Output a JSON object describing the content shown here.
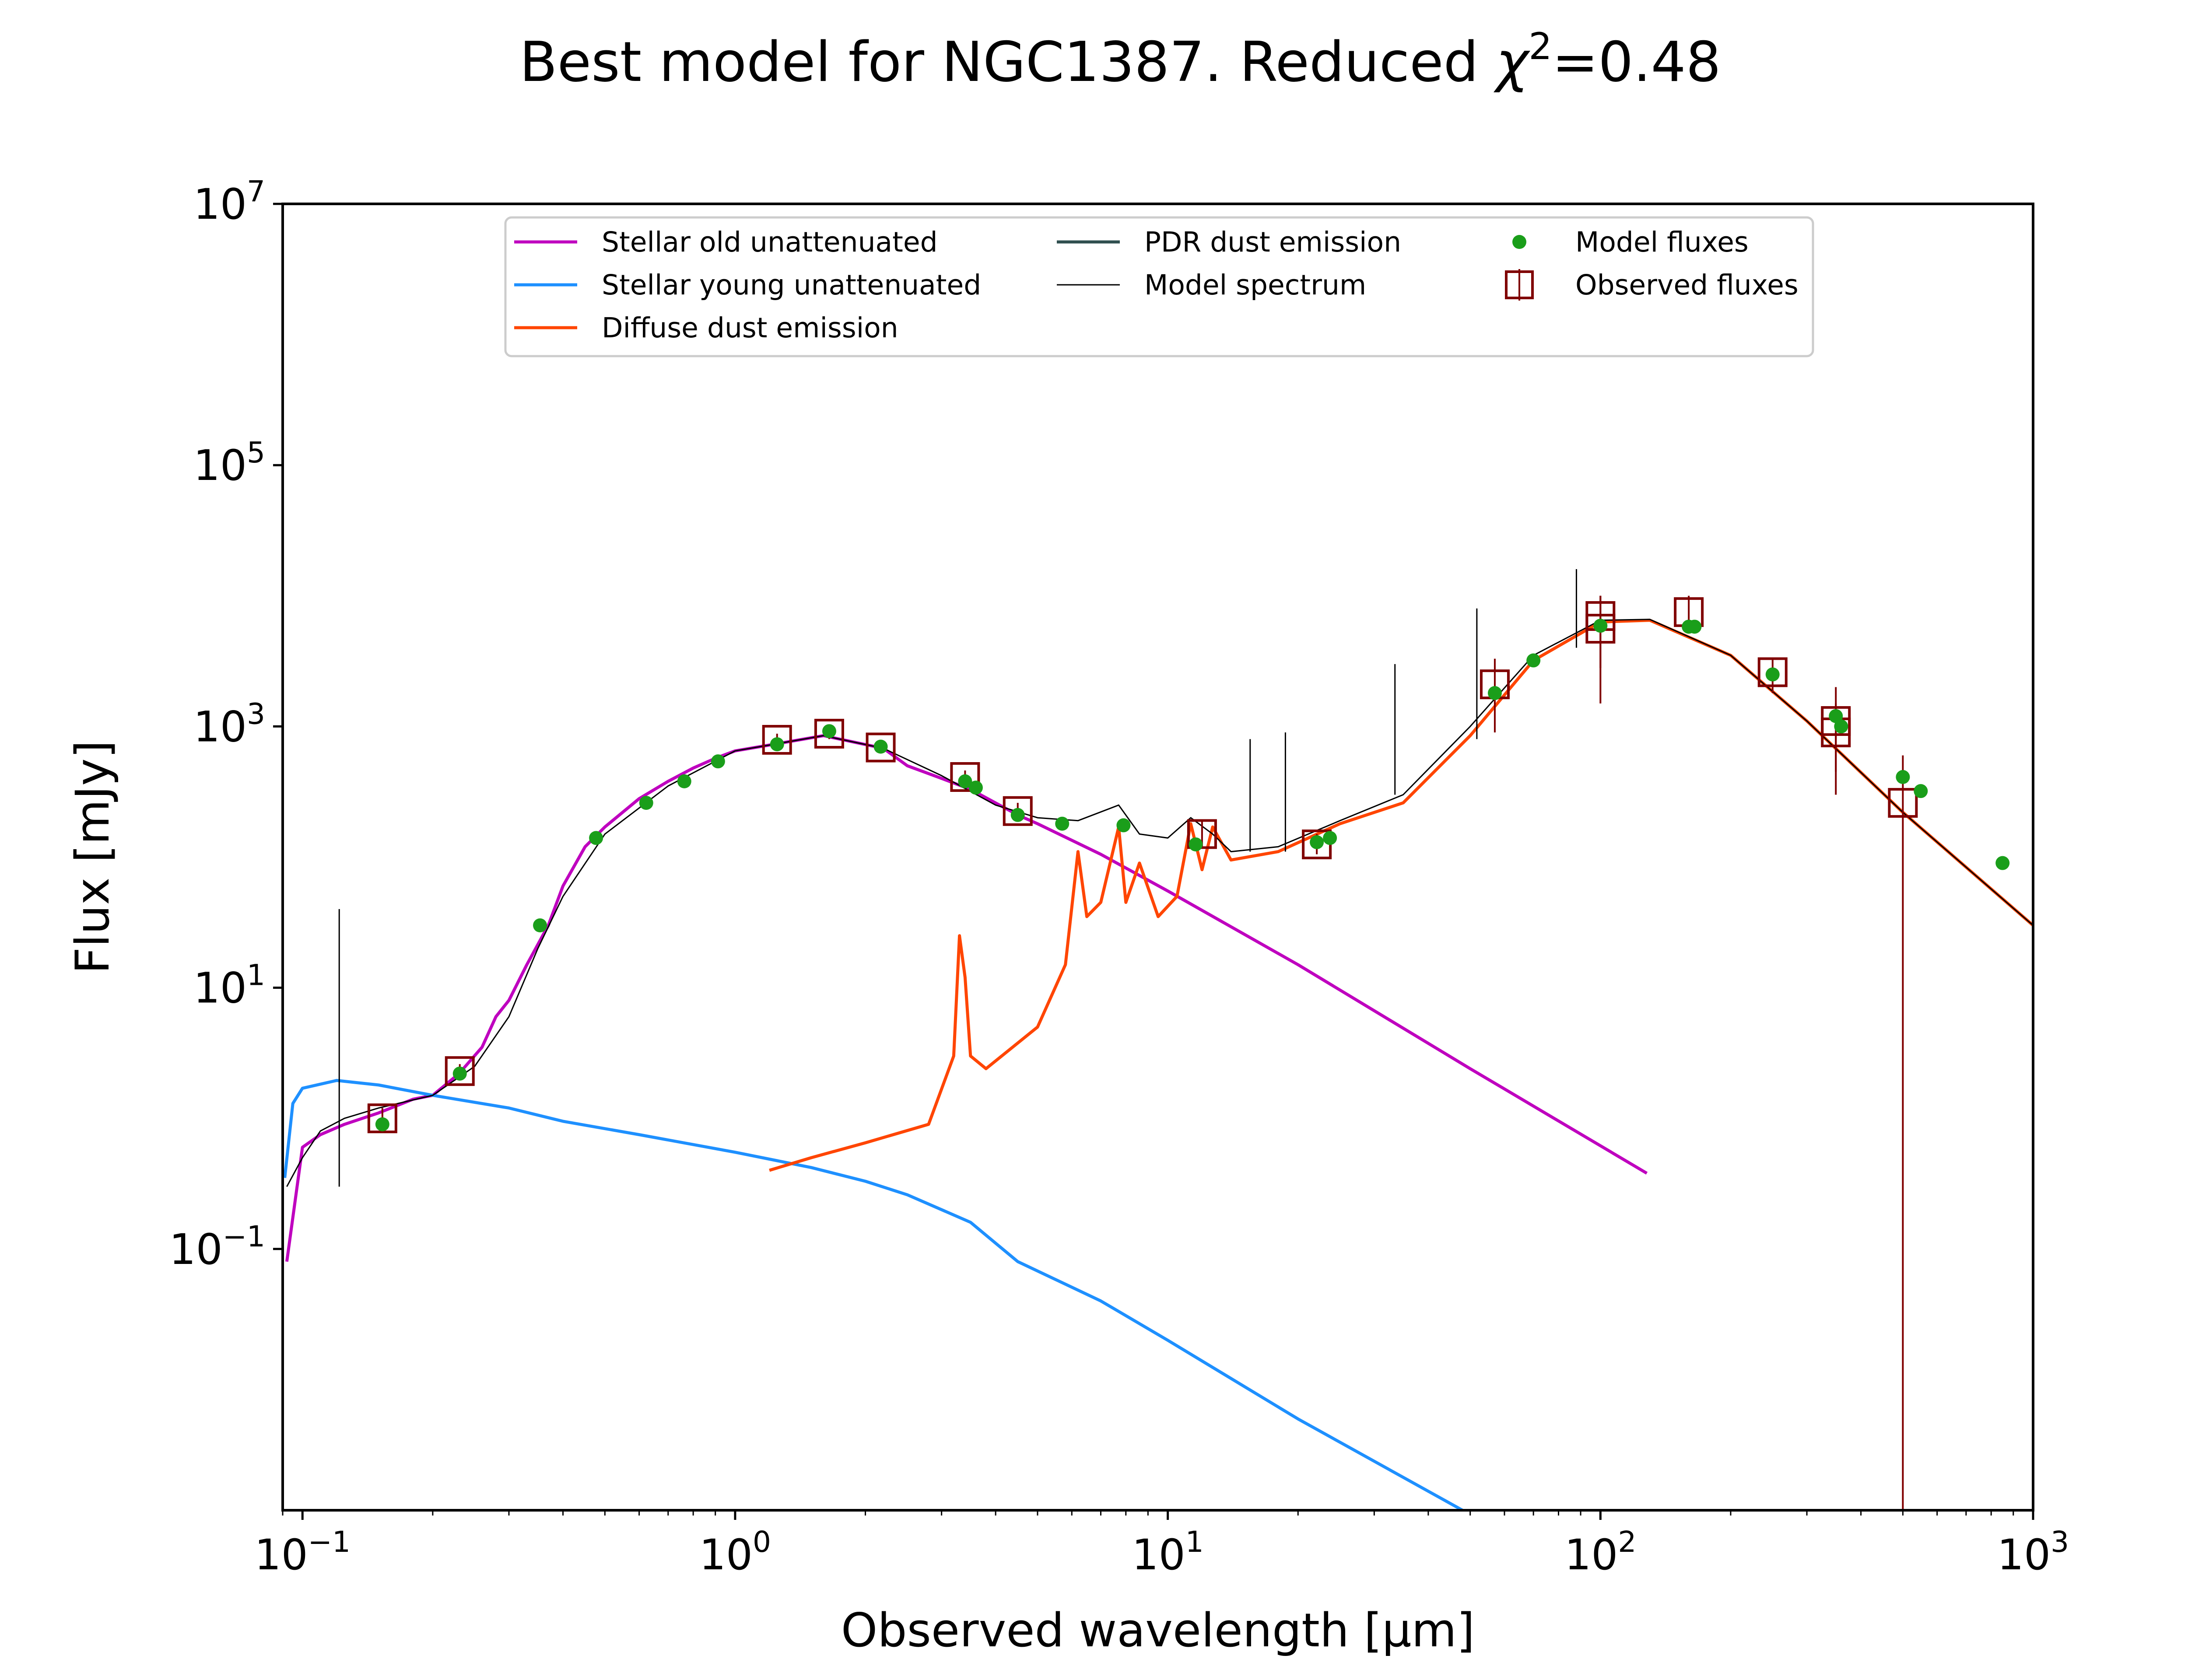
{
  "chart_data": {
    "type": "line",
    "title_main": "Best model for NGC1387. Reduced ",
    "title_chi": "χ",
    "title_chi_exp": "2",
    "title_value": "=0.48",
    "xlabel": "Observed wavelength [μm]",
    "ylabel": "Flux [mJy]",
    "x_scale": "log",
    "y_scale": "log",
    "xlim": [
      0.09,
      1000
    ],
    "ylim": [
      0.001,
      10000000
    ],
    "x_ticks": [
      {
        "base": "10",
        "exp": "−1",
        "value": 0.1
      },
      {
        "base": "10",
        "exp": "0",
        "value": 1
      },
      {
        "base": "10",
        "exp": "1",
        "value": 10
      },
      {
        "base": "10",
        "exp": "2",
        "value": 100
      },
      {
        "base": "10",
        "exp": "3",
        "value": 1000
      }
    ],
    "y_ticks": [
      {
        "base": "10",
        "exp": "−1",
        "value": 0.1
      },
      {
        "base": "10",
        "exp": "1",
        "value": 10
      },
      {
        "base": "10",
        "exp": "3",
        "value": 1000
      },
      {
        "base": "10",
        "exp": "5",
        "value": 100000
      },
      {
        "base": "10",
        "exp": "7",
        "value": 10000000
      }
    ],
    "legend_position": "upper center",
    "legend": [
      {
        "label": "Stellar old unattenuated",
        "kind": "line",
        "color": "#bf00bf"
      },
      {
        "label": "Stellar young unattenuated",
        "kind": "line",
        "color": "#1e90ff"
      },
      {
        "label": "Diffuse dust emission",
        "kind": "line",
        "color": "#ff4500"
      },
      {
        "label": "PDR dust emission",
        "kind": "line",
        "color": "#2f4f4f"
      },
      {
        "label": "Model spectrum",
        "kind": "thinline",
        "color": "#000000"
      },
      {
        "label": "Model fluxes",
        "kind": "dot",
        "color": "#1a9e1a"
      },
      {
        "label": "Observed fluxes",
        "kind": "box",
        "color": "#800000"
      }
    ],
    "series": [
      {
        "name": "Stellar old unattenuated",
        "color": "#bf00bf",
        "x": [
          0.092,
          0.1,
          0.11,
          0.125,
          0.15,
          0.18,
          0.2,
          0.23,
          0.26,
          0.28,
          0.3,
          0.33,
          0.37,
          0.4,
          0.45,
          0.5,
          0.6,
          0.7,
          0.8,
          0.9,
          1.0,
          1.2,
          1.6,
          2.2,
          2.5,
          3.0,
          3.5,
          4.5,
          5.0,
          7.0,
          10,
          20,
          50,
          128
        ],
        "y": [
          0.08,
          0.6,
          0.75,
          0.9,
          1.1,
          1.4,
          1.5,
          2.2,
          3.5,
          6,
          8,
          15,
          30,
          60,
          120,
          170,
          280,
          380,
          480,
          570,
          650,
          720,
          850,
          680,
          500,
          400,
          330,
          210,
          180,
          105,
          55,
          15,
          2.4,
          0.38
        ]
      },
      {
        "name": "Stellar young unattenuated",
        "color": "#1e90ff",
        "x": [
          0.091,
          0.095,
          0.1,
          0.12,
          0.15,
          0.2,
          0.3,
          0.4,
          0.6,
          1.0,
          1.5,
          2.0,
          2.5,
          3.5,
          4.5,
          7.0,
          10,
          20,
          48
        ],
        "y": [
          0.35,
          1.3,
          1.7,
          1.95,
          1.8,
          1.5,
          1.2,
          0.95,
          0.75,
          0.55,
          0.42,
          0.33,
          0.26,
          0.16,
          0.08,
          0.04,
          0.02,
          0.005,
          0.001
        ]
      },
      {
        "name": "Diffuse dust emission",
        "color": "#ff4500",
        "x": [
          1.2,
          1.5,
          2.0,
          2.8,
          3.2,
          3.3,
          3.4,
          3.5,
          3.8,
          5.0,
          5.8,
          6.2,
          6.5,
          7.0,
          7.7,
          8.0,
          8.6,
          9.5,
          10.5,
          11.3,
          12.0,
          12.7,
          14,
          18,
          25,
          35,
          50,
          70,
          100,
          130,
          200,
          300,
          500,
          1000
        ],
        "y": [
          0.4,
          0.5,
          0.65,
          0.9,
          3,
          25,
          12,
          3,
          2.4,
          5,
          15,
          110,
          35,
          45,
          170,
          45,
          90,
          35,
          50,
          180,
          80,
          170,
          95,
          110,
          180,
          260,
          850,
          3200,
          6300,
          6500,
          3500,
          1100,
          220,
          30
        ]
      },
      {
        "name": "Model spectrum",
        "color": "#000000",
        "x": [
          0.092,
          0.1,
          0.11,
          0.125,
          0.15,
          0.2,
          0.25,
          0.3,
          0.35,
          0.4,
          0.5,
          0.7,
          1.0,
          1.2,
          1.6,
          2.2,
          3.0,
          4.0,
          5.0,
          6.2,
          7.7,
          8.6,
          10,
          11.3,
          12.7,
          14,
          18,
          25,
          35,
          50,
          70,
          100,
          130,
          200,
          300,
          500,
          1000
        ],
        "y": [
          0.3,
          0.5,
          0.8,
          1.0,
          1.2,
          1.5,
          2.5,
          6,
          20,
          50,
          150,
          350,
          650,
          720,
          850,
          680,
          420,
          250,
          200,
          190,
          250,
          150,
          140,
          200,
          150,
          110,
          120,
          190,
          300,
          1000,
          3500,
          6500,
          6600,
          3500,
          1100,
          220,
          30
        ]
      }
    ],
    "model_spectrum_lines": [
      {
        "x": 0.1216,
        "y0": 0.3,
        "y1": 40
      },
      {
        "x": 15.5,
        "y0": 110,
        "y1": 800
      },
      {
        "x": 18.7,
        "y0": 110,
        "y1": 900
      },
      {
        "x": 33.5,
        "y0": 300,
        "y1": 3000
      },
      {
        "x": 51.8,
        "y0": 800,
        "y1": 8000
      },
      {
        "x": 88,
        "y0": 4000,
        "y1": 16000
      }
    ],
    "model_fluxes": {
      "x": [
        0.153,
        0.231,
        0.354,
        0.477,
        0.623,
        0.763,
        0.913,
        1.25,
        1.65,
        2.17,
        3.4,
        3.6,
        4.5,
        5.7,
        7.9,
        11.6,
        22.1,
        23.7,
        57,
        70,
        100,
        160,
        165,
        250,
        350,
        360,
        500,
        550,
        850
      ],
      "y": [
        0.9,
        2.2,
        30,
        140,
        260,
        380,
        540,
        730,
        920,
        700,
        380,
        340,
        210,
        180,
        175,
        125,
        130,
        140,
        1800,
        3200,
        5900,
        5800,
        5800,
        2500,
        1200,
        1000,
        410,
        320,
        90
      ]
    },
    "observed_fluxes": {
      "x": [
        0.153,
        0.231,
        1.25,
        1.65,
        2.17,
        3.4,
        4.5,
        12,
        22.1,
        57,
        100,
        100,
        160,
        250,
        350,
        350,
        500
      ],
      "y": [
        1.0,
        2.3,
        790,
        880,
        690,
        410,
        225,
        150,
        125,
        2100,
        7000,
        5600,
        7500,
        2600,
        1100,
        900,
        260
      ],
      "err_lo": [
        0.8,
        2.0,
        700,
        800,
        620,
        360,
        190,
        120,
        105,
        900,
        1500,
        2800,
        6000,
        1800,
        450,
        300,
        0.001
      ],
      "err_hi": [
        1.2,
        2.6,
        880,
        970,
        760,
        460,
        260,
        190,
        150,
        3300,
        10000,
        10000,
        10000,
        3300,
        2000,
        1500,
        600
      ]
    }
  }
}
